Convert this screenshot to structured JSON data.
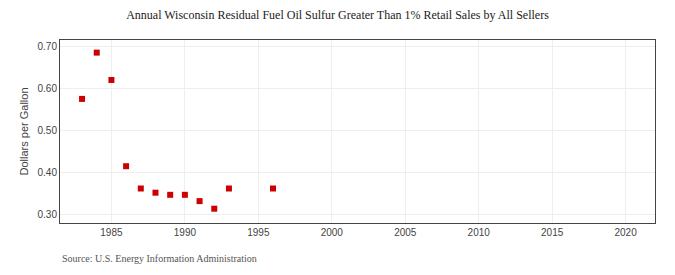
{
  "chart_data": {
    "type": "scatter",
    "title": "Annual Wisconsin Residual Fuel Oil Sulfur Greater Than 1% Retail Sales by All Sellers",
    "ylabel": "Dollars per Gallon",
    "annotations": [
      "Source: U.S. Energy Information Administration"
    ],
    "x": [
      1983,
      1984,
      1985,
      1986,
      1987,
      1988,
      1989,
      1990,
      1991,
      1992,
      1993,
      1996
    ],
    "values": [
      0.575,
      0.685,
      0.62,
      0.415,
      0.362,
      0.352,
      0.347,
      0.347,
      0.332,
      0.314,
      0.362,
      0.362
    ],
    "color": "#cc0000",
    "marker": "square",
    "xlim": [
      1981.5,
      2022
    ],
    "ylim": [
      0.28,
      0.715
    ],
    "xticks": [
      1985,
      1990,
      1995,
      2000,
      2005,
      2010,
      2015,
      2020
    ],
    "yticks": [
      {
        "value": 0.3,
        "label": "0.30"
      },
      {
        "value": 0.4,
        "label": "0.40"
      },
      {
        "value": 0.5,
        "label": "0.50"
      },
      {
        "value": 0.6,
        "label": "0.60"
      },
      {
        "value": 0.7,
        "label": "0.70"
      }
    ],
    "grid": true
  }
}
